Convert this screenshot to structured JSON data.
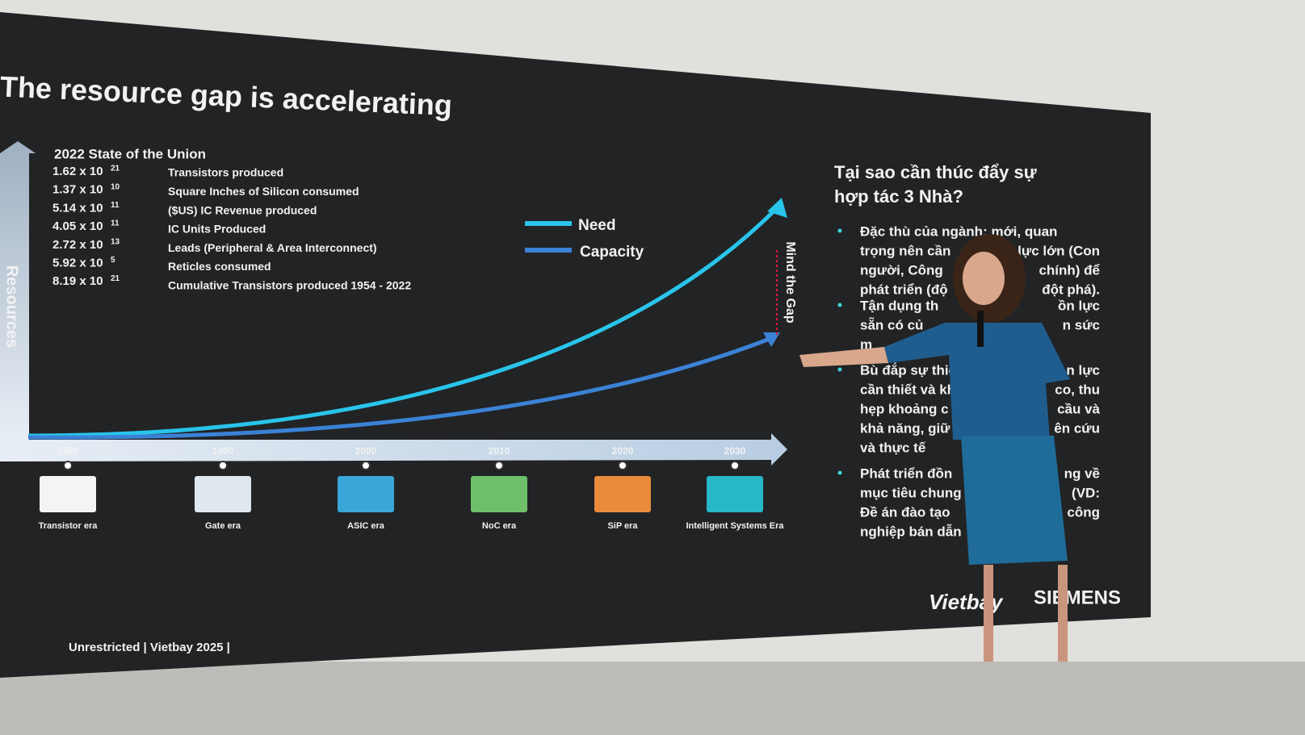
{
  "slide": {
    "title": "The resource gap is accelerating",
    "y_axis_label": "Resources",
    "stats_heading": "2022 State of the Union",
    "stats": [
      {
        "value": "1.62 x 10",
        "exponent": "21",
        "label": "Transistors produced"
      },
      {
        "value": "1.37 x 10",
        "exponent": "10",
        "label": "Square Inches of Silicon consumed"
      },
      {
        "value": "5.14 x 10",
        "exponent": "11",
        "label": "($US) IC Revenue produced"
      },
      {
        "value": "4.05 x 10",
        "exponent": "11",
        "label": "IC Units Produced"
      },
      {
        "value": "2.72 x 10",
        "exponent": "13",
        "label": "Leads (Peripheral & Area Interconnect)"
      },
      {
        "value": "5.92 x 10",
        "exponent": "5",
        "label": "Reticles consumed"
      },
      {
        "value": "8.19 x 10",
        "exponent": "21",
        "label": "Cumulative Transistors produced 1954 - 2022"
      }
    ],
    "legend": [
      "Need",
      "Capacity"
    ],
    "gap_label": "Mind the Gap",
    "timeline": [
      {
        "year": "1980",
        "era": "Transistor era"
      },
      {
        "year": "1990",
        "era": "Gate era"
      },
      {
        "year": "2000",
        "era": "ASIC era"
      },
      {
        "year": "2010",
        "era": "NoC era"
      },
      {
        "year": "2020",
        "era": "SiP era"
      },
      {
        "year": "2030",
        "era": "Intelligent Systems Era"
      }
    ],
    "footer": "Unrestricted | Vietbay 2025 |",
    "right_heading": [
      "Tại sao cần thúc đẩy sự",
      "hợp tác 3 Nhà?"
    ],
    "bullets": [
      [
        [
          "Đặc thù của ngành: mới, quan"
        ],
        [
          "trọng nên cần",
          "lực lớn (Con"
        ],
        [
          "người, Công",
          "chính) để"
        ],
        [
          "phát triển (độ",
          "đột phá)."
        ]
      ],
      [
        [
          "Tận dụng th",
          "ồn lực"
        ],
        [
          "sẵn có củ",
          "n sức"
        ],
        [
          "m"
        ]
      ],
      [
        [
          "Bù đắp sự thiế",
          "n lực"
        ],
        [
          "cần thiết và kh",
          "co, thu"
        ],
        [
          "hẹp khoảng c",
          "cầu và"
        ],
        [
          "khả năng, giữ",
          "ên cứu"
        ],
        [
          "và thực tế"
        ]
      ],
      [
        [
          "Phát triển đồn",
          "ng về"
        ],
        [
          "mục tiêu chung",
          "(VD:"
        ],
        [
          "Đề án đào tạo",
          "công"
        ],
        [
          "nghiệp bán dẫn"
        ]
      ]
    ],
    "logos": [
      "Vietbay",
      "SIEMENS"
    ]
  }
}
